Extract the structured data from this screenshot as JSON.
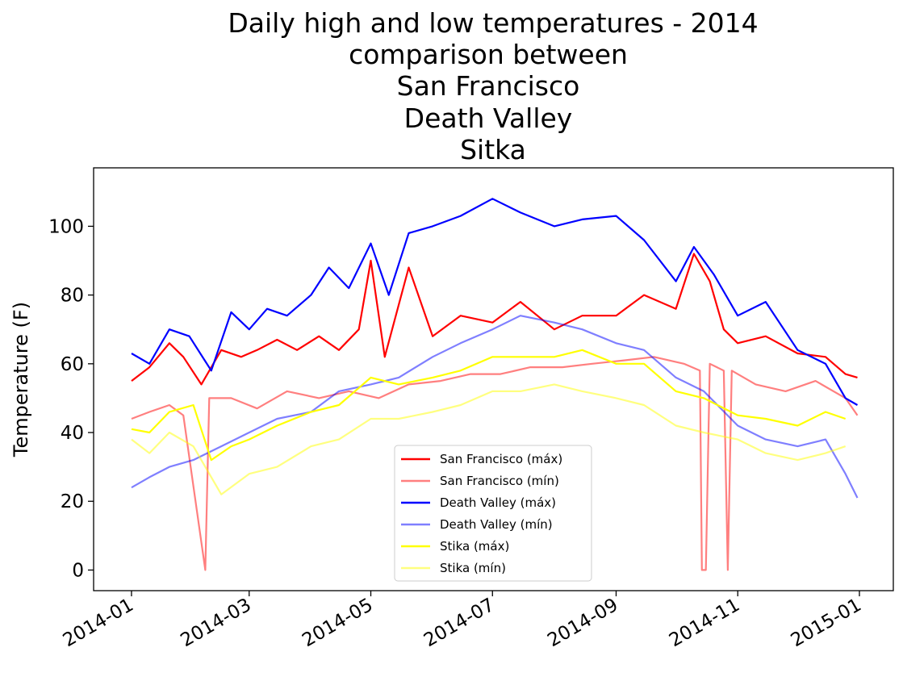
{
  "chart_data": {
    "type": "line",
    "title_lines": [
      "Daily high and low temperatures - 2014",
      "comparison between",
      "San Francisco",
      "Death Valley",
      "Sitka"
    ],
    "xlabel": "",
    "ylabel": "Temperature (F)",
    "x_start": "2014-01-01",
    "x_end": "2014-12-31",
    "xlim": [
      "2013-12-13",
      "2015-01-18"
    ],
    "ylim": [
      -6,
      117
    ],
    "x_ticks": [
      "2014-01",
      "2014-03",
      "2014-05",
      "2014-07",
      "2014-09",
      "2014-11",
      "2015-01"
    ],
    "y_ticks": [
      "0",
      "20",
      "40",
      "60",
      "80",
      "100"
    ],
    "grid": false,
    "legend_position": "lower-center",
    "series": [
      {
        "name": "San Francisco (máx)",
        "color": "#ff0000",
        "opacity": 1,
        "values": [
          {
            "x": "2014-01-01",
            "y": 55
          },
          {
            "x": "2014-01-10",
            "y": 59
          },
          {
            "x": "2014-01-20",
            "y": 66
          },
          {
            "x": "2014-01-27",
            "y": 62
          },
          {
            "x": "2014-02-05",
            "y": 54
          },
          {
            "x": "2014-02-15",
            "y": 64
          },
          {
            "x": "2014-02-25",
            "y": 62
          },
          {
            "x": "2014-03-05",
            "y": 64
          },
          {
            "x": "2014-03-15",
            "y": 67
          },
          {
            "x": "2014-03-25",
            "y": 64
          },
          {
            "x": "2014-04-05",
            "y": 68
          },
          {
            "x": "2014-04-15",
            "y": 64
          },
          {
            "x": "2014-04-25",
            "y": 70
          },
          {
            "x": "2014-05-01",
            "y": 90
          },
          {
            "x": "2014-05-08",
            "y": 62
          },
          {
            "x": "2014-05-20",
            "y": 88
          },
          {
            "x": "2014-06-01",
            "y": 68
          },
          {
            "x": "2014-06-15",
            "y": 74
          },
          {
            "x": "2014-07-01",
            "y": 72
          },
          {
            "x": "2014-07-15",
            "y": 78
          },
          {
            "x": "2014-08-01",
            "y": 70
          },
          {
            "x": "2014-08-15",
            "y": 74
          },
          {
            "x": "2014-09-01",
            "y": 74
          },
          {
            "x": "2014-09-15",
            "y": 80
          },
          {
            "x": "2014-10-01",
            "y": 76
          },
          {
            "x": "2014-10-10",
            "y": 92
          },
          {
            "x": "2014-10-18",
            "y": 84
          },
          {
            "x": "2014-10-25",
            "y": 70
          },
          {
            "x": "2014-11-01",
            "y": 66
          },
          {
            "x": "2014-11-15",
            "y": 68
          },
          {
            "x": "2014-12-01",
            "y": 63
          },
          {
            "x": "2014-12-15",
            "y": 62
          },
          {
            "x": "2014-12-25",
            "y": 57
          },
          {
            "x": "2014-12-31",
            "y": 56
          }
        ]
      },
      {
        "name": "San Francisco (mín)",
        "color": "#ff0000",
        "opacity": 0.5,
        "values": [
          {
            "x": "2014-01-01",
            "y": 44
          },
          {
            "x": "2014-01-10",
            "y": 46
          },
          {
            "x": "2014-01-20",
            "y": 48
          },
          {
            "x": "2014-01-27",
            "y": 45
          },
          {
            "x": "2014-02-07",
            "y": 0
          },
          {
            "x": "2014-02-09",
            "y": 50
          },
          {
            "x": "2014-02-20",
            "y": 50
          },
          {
            "x": "2014-03-05",
            "y": 47
          },
          {
            "x": "2014-03-20",
            "y": 52
          },
          {
            "x": "2014-04-05",
            "y": 50
          },
          {
            "x": "2014-04-20",
            "y": 52
          },
          {
            "x": "2014-05-05",
            "y": 50
          },
          {
            "x": "2014-05-20",
            "y": 54
          },
          {
            "x": "2014-06-05",
            "y": 55
          },
          {
            "x": "2014-06-20",
            "y": 57
          },
          {
            "x": "2014-07-05",
            "y": 57
          },
          {
            "x": "2014-07-20",
            "y": 59
          },
          {
            "x": "2014-08-05",
            "y": 59
          },
          {
            "x": "2014-08-20",
            "y": 60
          },
          {
            "x": "2014-09-05",
            "y": 61
          },
          {
            "x": "2014-09-20",
            "y": 62
          },
          {
            "x": "2014-10-05",
            "y": 60
          },
          {
            "x": "2014-10-13",
            "y": 58
          },
          {
            "x": "2014-10-14",
            "y": 0
          },
          {
            "x": "2014-10-16",
            "y": 0
          },
          {
            "x": "2014-10-18",
            "y": 60
          },
          {
            "x": "2014-10-25",
            "y": 58
          },
          {
            "x": "2014-10-27",
            "y": 0
          },
          {
            "x": "2014-10-29",
            "y": 58
          },
          {
            "x": "2014-11-10",
            "y": 54
          },
          {
            "x": "2014-11-25",
            "y": 52
          },
          {
            "x": "2014-12-10",
            "y": 55
          },
          {
            "x": "2014-12-25",
            "y": 50
          },
          {
            "x": "2014-12-31",
            "y": 45
          }
        ]
      },
      {
        "name": "Death Valley (máx)",
        "color": "#0000ff",
        "opacity": 1,
        "values": [
          {
            "x": "2014-01-01",
            "y": 63
          },
          {
            "x": "2014-01-10",
            "y": 60
          },
          {
            "x": "2014-01-20",
            "y": 70
          },
          {
            "x": "2014-01-30",
            "y": 68
          },
          {
            "x": "2014-02-10",
            "y": 58
          },
          {
            "x": "2014-02-20",
            "y": 75
          },
          {
            "x": "2014-03-01",
            "y": 70
          },
          {
            "x": "2014-03-10",
            "y": 76
          },
          {
            "x": "2014-03-20",
            "y": 74
          },
          {
            "x": "2014-04-01",
            "y": 80
          },
          {
            "x": "2014-04-10",
            "y": 88
          },
          {
            "x": "2014-04-20",
            "y": 82
          },
          {
            "x": "2014-05-01",
            "y": 95
          },
          {
            "x": "2014-05-10",
            "y": 80
          },
          {
            "x": "2014-05-20",
            "y": 98
          },
          {
            "x": "2014-06-01",
            "y": 100
          },
          {
            "x": "2014-06-15",
            "y": 103
          },
          {
            "x": "2014-07-01",
            "y": 108
          },
          {
            "x": "2014-07-15",
            "y": 104
          },
          {
            "x": "2014-08-01",
            "y": 100
          },
          {
            "x": "2014-08-15",
            "y": 102
          },
          {
            "x": "2014-09-01",
            "y": 103
          },
          {
            "x": "2014-09-15",
            "y": 96
          },
          {
            "x": "2014-10-01",
            "y": 84
          },
          {
            "x": "2014-10-10",
            "y": 94
          },
          {
            "x": "2014-10-20",
            "y": 86
          },
          {
            "x": "2014-11-01",
            "y": 74
          },
          {
            "x": "2014-11-15",
            "y": 78
          },
          {
            "x": "2014-12-01",
            "y": 64
          },
          {
            "x": "2014-12-15",
            "y": 60
          },
          {
            "x": "2014-12-25",
            "y": 50
          },
          {
            "x": "2014-12-31",
            "y": 48
          }
        ]
      },
      {
        "name": "Death Valley (mín)",
        "color": "#0000ff",
        "opacity": 0.5,
        "values": [
          {
            "x": "2014-01-01",
            "y": 24
          },
          {
            "x": "2014-01-10",
            "y": 27
          },
          {
            "x": "2014-01-20",
            "y": 30
          },
          {
            "x": "2014-02-01",
            "y": 32
          },
          {
            "x": "2014-02-15",
            "y": 36
          },
          {
            "x": "2014-03-01",
            "y": 40
          },
          {
            "x": "2014-03-15",
            "y": 44
          },
          {
            "x": "2014-04-01",
            "y": 46
          },
          {
            "x": "2014-04-15",
            "y": 52
          },
          {
            "x": "2014-05-01",
            "y": 54
          },
          {
            "x": "2014-05-15",
            "y": 56
          },
          {
            "x": "2014-06-01",
            "y": 62
          },
          {
            "x": "2014-06-15",
            "y": 66
          },
          {
            "x": "2014-07-01",
            "y": 70
          },
          {
            "x": "2014-07-15",
            "y": 74
          },
          {
            "x": "2014-08-01",
            "y": 72
          },
          {
            "x": "2014-08-15",
            "y": 70
          },
          {
            "x": "2014-09-01",
            "y": 66
          },
          {
            "x": "2014-09-15",
            "y": 64
          },
          {
            "x": "2014-10-01",
            "y": 56
          },
          {
            "x": "2014-10-15",
            "y": 52
          },
          {
            "x": "2014-11-01",
            "y": 42
          },
          {
            "x": "2014-11-15",
            "y": 38
          },
          {
            "x": "2014-12-01",
            "y": 36
          },
          {
            "x": "2014-12-15",
            "y": 38
          },
          {
            "x": "2014-12-25",
            "y": 28
          },
          {
            "x": "2014-12-31",
            "y": 21
          }
        ]
      },
      {
        "name": "Stika (máx)",
        "color": "#ffff00",
        "opacity": 1,
        "values": [
          {
            "x": "2014-01-01",
            "y": 41
          },
          {
            "x": "2014-01-10",
            "y": 40
          },
          {
            "x": "2014-01-20",
            "y": 46
          },
          {
            "x": "2014-02-01",
            "y": 48
          },
          {
            "x": "2014-02-10",
            "y": 32
          },
          {
            "x": "2014-02-20",
            "y": 36
          },
          {
            "x": "2014-03-01",
            "y": 38
          },
          {
            "x": "2014-03-15",
            "y": 42
          },
          {
            "x": "2014-04-01",
            "y": 46
          },
          {
            "x": "2014-04-15",
            "y": 48
          },
          {
            "x": "2014-05-01",
            "y": 56
          },
          {
            "x": "2014-05-15",
            "y": 54
          },
          {
            "x": "2014-06-01",
            "y": 56
          },
          {
            "x": "2014-06-15",
            "y": 58
          },
          {
            "x": "2014-07-01",
            "y": 62
          },
          {
            "x": "2014-07-15",
            "y": 62
          },
          {
            "x": "2014-08-01",
            "y": 62
          },
          {
            "x": "2014-08-15",
            "y": 64
          },
          {
            "x": "2014-09-01",
            "y": 60
          },
          {
            "x": "2014-09-15",
            "y": 60
          },
          {
            "x": "2014-10-01",
            "y": 52
          },
          {
            "x": "2014-10-15",
            "y": 50
          },
          {
            "x": "2014-11-01",
            "y": 45
          },
          {
            "x": "2014-11-15",
            "y": 44
          },
          {
            "x": "2014-12-01",
            "y": 42
          },
          {
            "x": "2014-12-15",
            "y": 46
          },
          {
            "x": "2014-12-25",
            "y": 44
          }
        ]
      },
      {
        "name": "Stika (mín)",
        "color": "#ffff00",
        "opacity": 0.5,
        "values": [
          {
            "x": "2014-01-01",
            "y": 38
          },
          {
            "x": "2014-01-10",
            "y": 34
          },
          {
            "x": "2014-01-20",
            "y": 40
          },
          {
            "x": "2014-02-01",
            "y": 36
          },
          {
            "x": "2014-02-15",
            "y": 22
          },
          {
            "x": "2014-03-01",
            "y": 28
          },
          {
            "x": "2014-03-15",
            "y": 30
          },
          {
            "x": "2014-04-01",
            "y": 36
          },
          {
            "x": "2014-04-15",
            "y": 38
          },
          {
            "x": "2014-05-01",
            "y": 44
          },
          {
            "x": "2014-05-15",
            "y": 44
          },
          {
            "x": "2014-06-01",
            "y": 46
          },
          {
            "x": "2014-06-15",
            "y": 48
          },
          {
            "x": "2014-07-01",
            "y": 52
          },
          {
            "x": "2014-07-15",
            "y": 52
          },
          {
            "x": "2014-08-01",
            "y": 54
          },
          {
            "x": "2014-08-15",
            "y": 52
          },
          {
            "x": "2014-09-01",
            "y": 50
          },
          {
            "x": "2014-09-15",
            "y": 48
          },
          {
            "x": "2014-10-01",
            "y": 42
          },
          {
            "x": "2014-10-15",
            "y": 40
          },
          {
            "x": "2014-11-01",
            "y": 38
          },
          {
            "x": "2014-11-15",
            "y": 34
          },
          {
            "x": "2014-12-01",
            "y": 32
          },
          {
            "x": "2014-12-15",
            "y": 34
          },
          {
            "x": "2014-12-25",
            "y": 36
          }
        ]
      }
    ]
  }
}
